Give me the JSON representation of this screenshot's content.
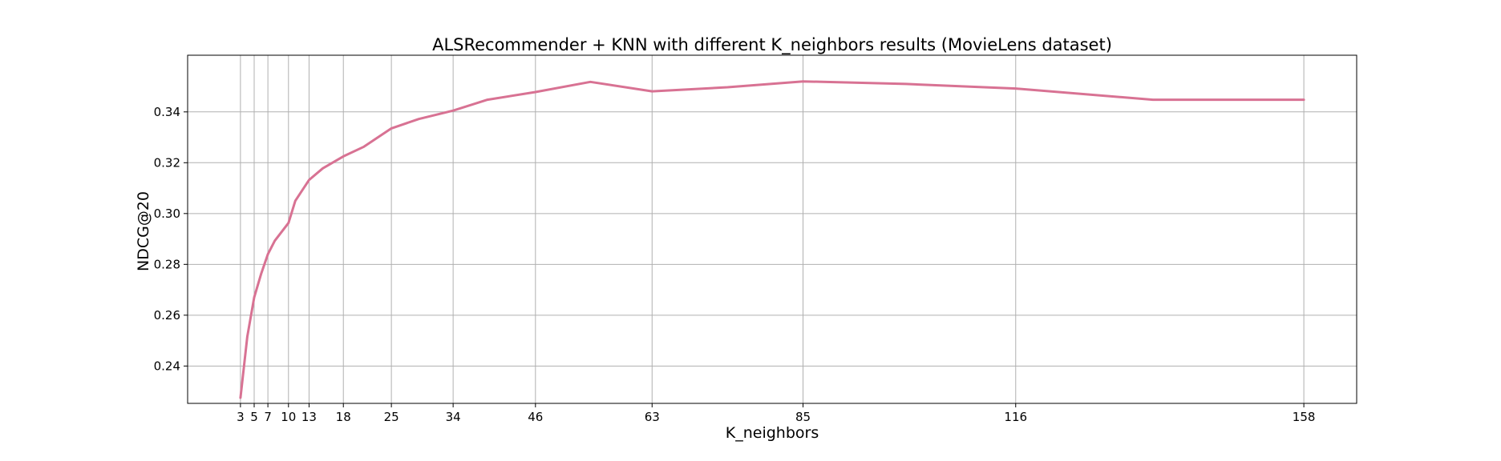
{
  "chart_data": {
    "type": "line",
    "title": "ALSRecommender + KNN with different K_neighbors results (MovieLens dataset)",
    "xlabel": "K_neighbors",
    "ylabel": "NDCG@20",
    "x_ticks": [
      3,
      5,
      7,
      10,
      13,
      18,
      25,
      34,
      46,
      63,
      85,
      116,
      158
    ],
    "y_ticks": [
      0.24,
      0.26,
      0.28,
      0.3,
      0.32,
      0.34
    ],
    "y_tick_labels": [
      "0.24",
      "0.26",
      "0.28",
      "0.30",
      "0.32",
      "0.34"
    ],
    "xlim": [
      -4.7,
      165.7
    ],
    "ylim": [
      0.2253,
      0.3623
    ],
    "grid": true,
    "color": "#d87293",
    "series": [
      {
        "x": [
          3,
          4,
          5,
          6,
          7,
          8,
          10,
          11,
          13,
          15,
          18,
          21,
          25,
          29,
          34,
          39,
          46,
          54,
          63,
          74,
          85,
          100,
          116,
          136,
          158
        ],
        "y": [
          0.2275,
          0.2515,
          0.267,
          0.2762,
          0.284,
          0.2893,
          0.2963,
          0.305,
          0.3132,
          0.3178,
          0.3225,
          0.3263,
          0.3335,
          0.3372,
          0.3405,
          0.3448,
          0.3478,
          0.3518,
          0.3481,
          0.3497,
          0.352,
          0.351,
          0.3492,
          0.3448,
          0.3448
        ]
      }
    ]
  }
}
